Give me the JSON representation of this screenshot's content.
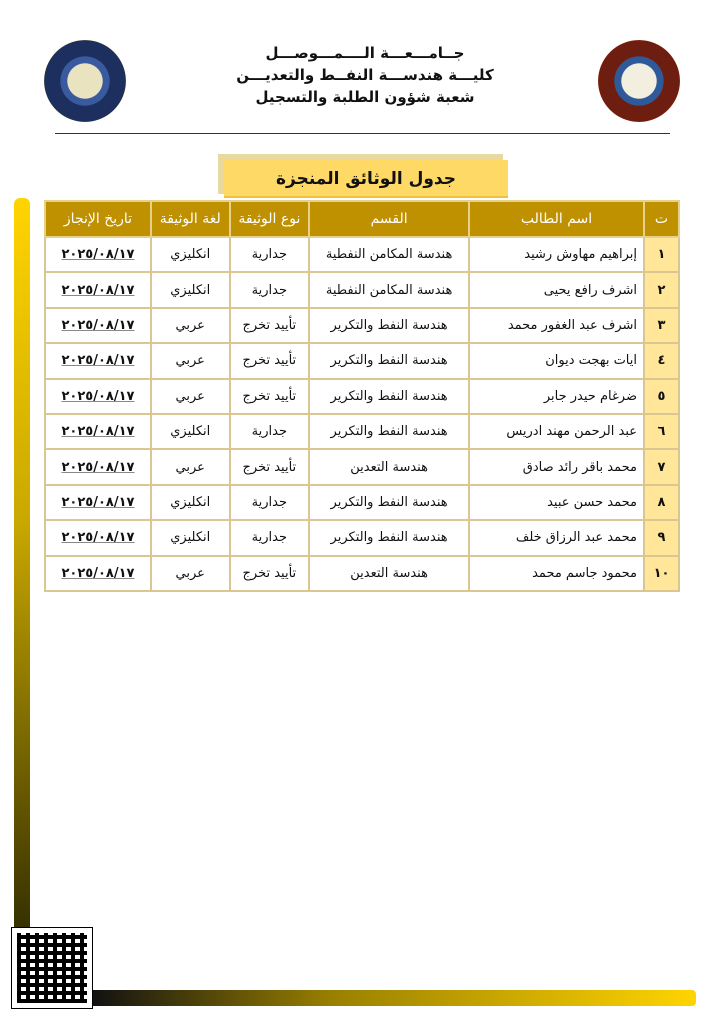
{
  "header": {
    "line1": "جــامـــعـــة الــــمـــوصـــل",
    "line2": "كليـــة هندســـة النفــط والتعديـــن",
    "line3": "شعبة شؤون الطلبة والتسجيل"
  },
  "title": "جدول الوثائق المنجزة",
  "table": {
    "headers": [
      "ت",
      "اسم الطالب",
      "القسم",
      "نوع الوثيقة",
      "لغة الوثيقة",
      "تاريخ الإنجاز"
    ],
    "rows": [
      [
        "١",
        "إبراهيم مهاوش رشيد",
        "هندسة المكامن النفطية",
        "جدارية",
        "انكليزي",
        "٢٠٢٥/٠٨/١٧"
      ],
      [
        "٢",
        "اشرف رافع يحيى",
        "هندسة المكامن النفطية",
        "جدارية",
        "انكليزي",
        "٢٠٢٥/٠٨/١٧"
      ],
      [
        "٣",
        "اشرف عبد الغفور محمد",
        "هندسة النفط والتكرير",
        "تأييد تخرج",
        "عربي",
        "٢٠٢٥/٠٨/١٧"
      ],
      [
        "٤",
        "ايات بهجت ديوان",
        "هندسة النفط والتكرير",
        "تأييد تخرج",
        "عربي",
        "٢٠٢٥/٠٨/١٧"
      ],
      [
        "٥",
        "ضرغام حيدر جابر",
        "هندسة النفط والتكرير",
        "تأييد تخرج",
        "عربي",
        "٢٠٢٥/٠٨/١٧"
      ],
      [
        "٦",
        "عبد الرحمن مهند ادريس",
        "هندسة النفط والتكرير",
        "جدارية",
        "انكليزي",
        "٢٠٢٥/٠٨/١٧"
      ],
      [
        "٧",
        "محمد باقر رائد صادق",
        "هندسة التعدين",
        "تأييد تخرج",
        "عربي",
        "٢٠٢٥/٠٨/١٧"
      ],
      [
        "٨",
        "محمد حسن عبيد",
        "هندسة النفط والتكرير",
        "جدارية",
        "انكليزي",
        "٢٠٢٥/٠٨/١٧"
      ],
      [
        "٩",
        "محمد عبد الرزاق خلف",
        "هندسة النفط والتكرير",
        "جدارية",
        "انكليزي",
        "٢٠٢٥/٠٨/١٧"
      ],
      [
        "١٠",
        "محمود جاسم محمد",
        "هندسة التعدين",
        "تأييد تخرج",
        "عربي",
        "٢٠٢٥/٠٨/١٧"
      ]
    ]
  },
  "colors": {
    "header_bg": "#bf9000",
    "number_bg": "#ffe699",
    "title_bg": "#ffd966"
  }
}
